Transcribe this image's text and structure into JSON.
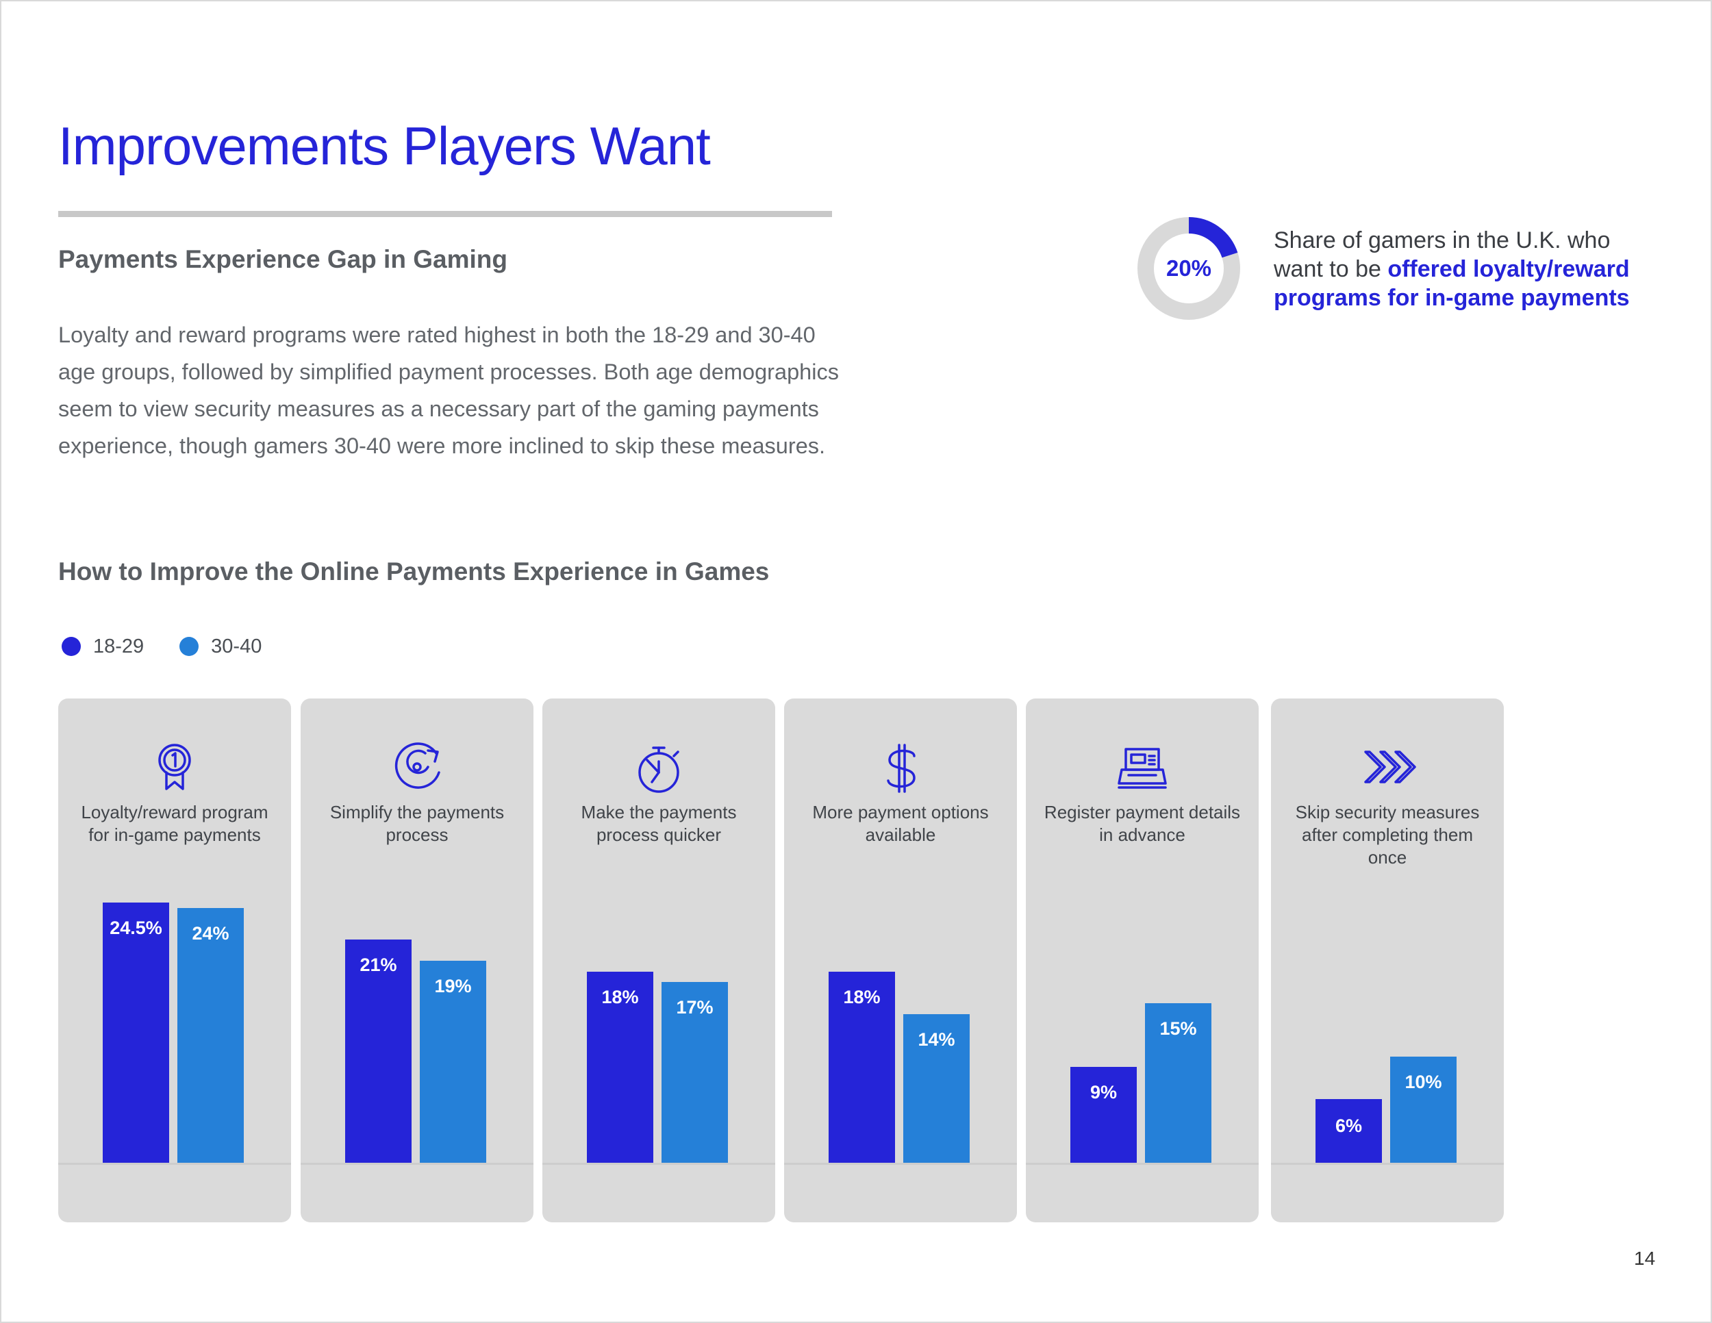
{
  "page": {
    "title": "Improvements Players Want",
    "subtitle": "Payments Experience Gap in Gaming",
    "body": "Loyalty and reward programs were rated highest in both the 18-29 and 30-40 age groups, followed by simplified payment processes. Both age demographics seem to view security measures as a necessary part of the gaming payments experience, though gamers 30-40 were more inclined to skip these measures.",
    "page_number": "14"
  },
  "stat": {
    "value": "20%",
    "fraction": 0.2,
    "text_plain": "Share of gamers in the U.K. who want to be ",
    "text_highlight": "offered loyalty/reward programs for in-game payments",
    "colors": {
      "fill": "#2524d8",
      "track": "#d9d9d9"
    }
  },
  "chart_data": {
    "type": "bar",
    "title": "How to Improve the Online Payments Experience in Games",
    "xlabel": "",
    "ylabel": "",
    "ylim": [
      0,
      24.5
    ],
    "grid": false,
    "legend_position": "top-left",
    "categories": [
      "Loyalty/reward program for in-game payments",
      "Simplify the payments process",
      "Make the payments process quicker",
      "More payment options available",
      "Register payment details in advance",
      "Skip security measures after completing them once"
    ],
    "icons": [
      "award-ribbon-icon",
      "refresh-cycle-icon",
      "stopwatch-icon",
      "dollar-sign-icon",
      "cash-register-icon",
      "chevrons-right-icon"
    ],
    "series": [
      {
        "name": "18-29",
        "color": "#2524d8",
        "values": [
          24.5,
          21,
          18,
          18,
          9,
          6
        ],
        "labels": [
          "24.5%",
          "21%",
          "18%",
          "18%",
          "9%",
          "6%"
        ]
      },
      {
        "name": "30-40",
        "color": "#2580d8",
        "values": [
          24,
          19,
          17,
          14,
          15,
          10
        ],
        "labels": [
          "24%",
          "19%",
          "17%",
          "14%",
          "15%",
          "10%"
        ]
      }
    ]
  }
}
